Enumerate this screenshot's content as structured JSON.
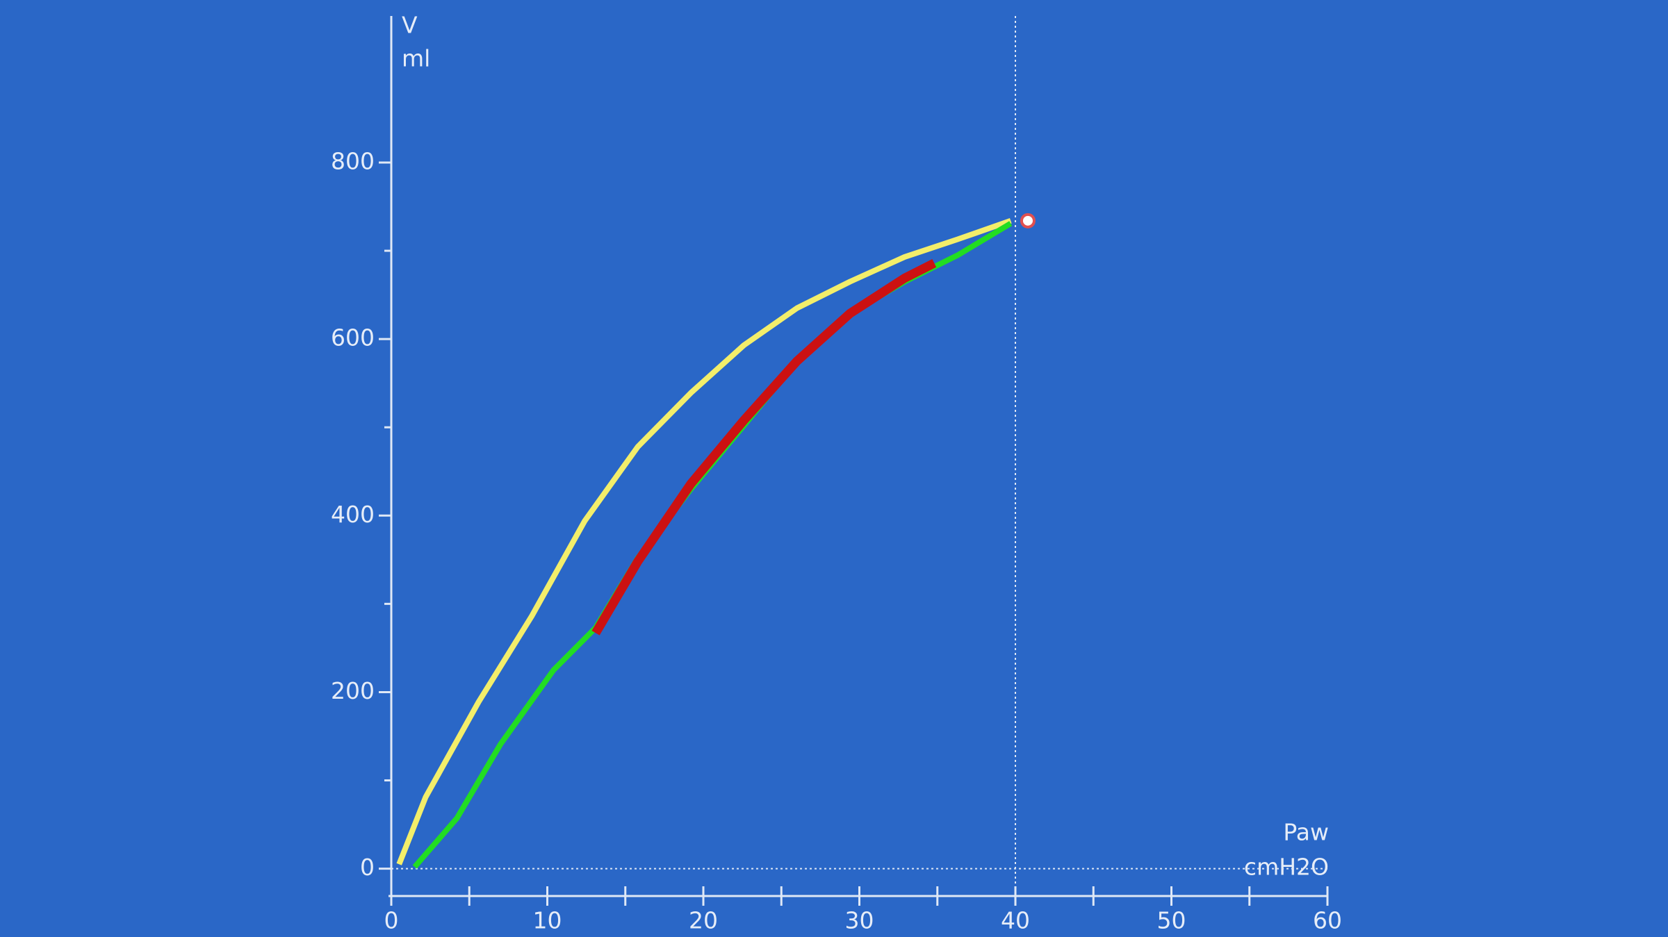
{
  "chart_data": {
    "type": "line",
    "y_label": "V",
    "y_unit": "ml",
    "x_label": "Paw",
    "x_unit": "cmH2O",
    "xlim": [
      0,
      60
    ],
    "xticks": [
      0,
      10,
      20,
      30,
      40,
      50,
      60
    ],
    "minor_xticks": [
      5,
      15,
      25,
      35,
      45,
      55
    ],
    "ylim": [
      -31,
      966
    ],
    "yticks": [
      0,
      200,
      400,
      600,
      800
    ],
    "minor_yticks": [
      100,
      300,
      500,
      700
    ],
    "cursor_x": 40,
    "series": [
      {
        "color": "#f3ee6a",
        "x": [
          0.5,
          2.2,
          5.6,
          9,
          12.4,
          15.8,
          19.2,
          22.6,
          26,
          29.4,
          32.9,
          36.3,
          39.7
        ],
        "values": [
          5,
          81,
          189,
          286,
          394,
          478,
          539,
          593,
          635,
          665,
          693,
          713,
          734
        ]
      },
      {
        "color": "#22dd22",
        "x": [
          1.5,
          4.2,
          7,
          10.4,
          13.1,
          15.8,
          19.2,
          22.6,
          26,
          29.4,
          32.9,
          36.3,
          39.7
        ],
        "values": [
          2,
          57,
          141,
          225,
          273,
          352,
          430,
          502,
          575,
          629,
          665,
          695,
          731
        ]
      },
      {
        "color": "#cc1111",
        "x": [
          13.1,
          15.8,
          19.2,
          22.6,
          26,
          29.4,
          32.9,
          34.8
        ],
        "values": [
          267,
          348,
          436,
          508,
          575,
          629,
          669,
          686
        ]
      }
    ],
    "marker": {
      "x": 40.8,
      "y": 734,
      "color": "#e05050"
    }
  }
}
